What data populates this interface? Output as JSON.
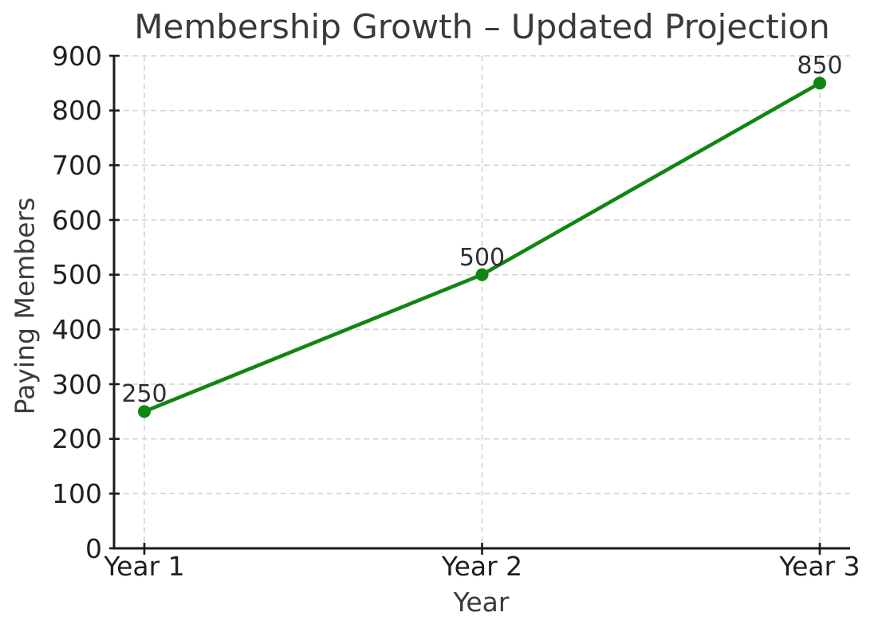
{
  "chart_data": {
    "type": "line",
    "title": "Membership Growth – Updated Projection",
    "xlabel": "Year",
    "ylabel": "Paying Members",
    "categories": [
      "Year 1",
      "Year 2",
      "Year 3"
    ],
    "series": [
      {
        "name": "Paying Members",
        "values": [
          250,
          500,
          850
        ]
      }
    ],
    "point_labels": [
      "250",
      "500",
      "850"
    ],
    "ylim": [
      0,
      900
    ],
    "yticks": [
      0,
      100,
      200,
      300,
      400,
      500,
      600,
      700,
      800,
      900
    ],
    "grid": "dashed",
    "legend": "none",
    "marker": "circle",
    "line_color": "#118511",
    "colors": {
      "background": "#ffffff",
      "grid": "#d4d4d4",
      "spine": "#1c1c1c",
      "title_text": "#3a3a3a",
      "tick_text": "#1f1f1f",
      "point_label_text": "#2e2e2e"
    }
  }
}
